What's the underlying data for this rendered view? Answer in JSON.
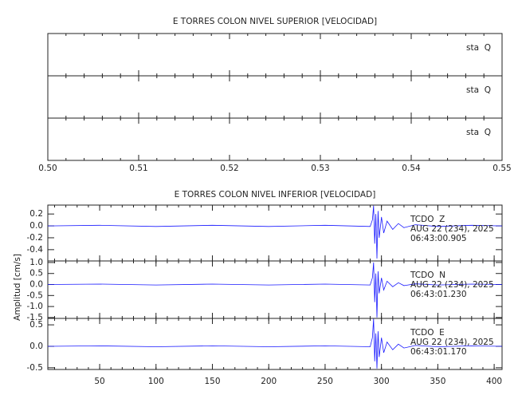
{
  "chart_data": [
    {
      "type": "line",
      "title": "E TORRES COLON NIVEL SUPERIOR [VELOCIDAD]",
      "xlim": [
        0.5,
        0.55
      ],
      "xticks": [
        {
          "value": 0.5,
          "label": "0.50"
        },
        0.51,
        0.52,
        0.53,
        0.54,
        {
          "value": 0.55,
          "label": "0.55"
        }
      ],
      "panels": [
        {
          "label": "sta  Q"
        },
        {
          "label": "sta  Q"
        },
        {
          "label": "sta  Q"
        }
      ]
    },
    {
      "type": "line",
      "title": "E TORRES COLON NIVEL INFERIOR [VELOCIDAD]",
      "ylabel": "Amplitud [cm/s]",
      "xlim": [
        4,
        407
      ],
      "xticks": [
        50,
        100,
        150,
        200,
        250,
        300,
        350,
        400
      ],
      "panels": [
        {
          "annotation": [
            "TCDO  Z",
            "AUG 22 (234), 2025",
            "06:43:00.905"
          ],
          "color": "#1a1aff",
          "ylim": [
            -0.59,
            0.35
          ],
          "yticks": [
            0.2,
            {
              "value": 0,
              "label": "0.0"
            },
            -0.2,
            -0.4
          ],
          "x": [
            4,
            50,
            100,
            150,
            200,
            250,
            290,
            292,
            293,
            294,
            295,
            296,
            297,
            298,
            300,
            302,
            305,
            310,
            315,
            320,
            330,
            350,
            380,
            407
          ],
          "values": [
            0,
            0.01,
            -0.01,
            0.01,
            -0.01,
            0.01,
            -0.01,
            0.1,
            0.34,
            -0.3,
            0.2,
            -0.55,
            0.25,
            -0.2,
            0.15,
            -0.12,
            0.08,
            -0.06,
            0.04,
            -0.03,
            0.02,
            -0.01,
            0.01,
            0
          ]
        },
        {
          "annotation": [
            "TCDO  N",
            "AUG 22 (234), 2025",
            "06:43:01.230"
          ],
          "color": "#1a1aff",
          "ylim": [
            -1.54,
            1.07
          ],
          "yticks": [
            {
              "value": 1,
              "label": "1.0"
            },
            0.5,
            {
              "value": 0,
              "label": "0.0"
            },
            -0.5,
            {
              "value": -1,
              "label": "-1.0"
            },
            -1.5
          ],
          "x": [
            4,
            50,
            100,
            150,
            200,
            250,
            290,
            292,
            293,
            294,
            295,
            296,
            297,
            298,
            300,
            302,
            305,
            310,
            315,
            320,
            330,
            350,
            380,
            407
          ],
          "values": [
            0,
            0.02,
            -0.02,
            0.02,
            -0.02,
            0.02,
            -0.02,
            0.3,
            1.0,
            -0.8,
            0.5,
            -1.5,
            0.6,
            -0.4,
            0.3,
            -0.25,
            0.15,
            -0.1,
            0.08,
            -0.05,
            0.03,
            -0.02,
            0.02,
            0
          ]
        },
        {
          "annotation": [
            "TCDO  E",
            "AUG 22 (234), 2025",
            "06:43:01.170"
          ],
          "color": "#1a1aff",
          "ylim": [
            -0.54,
            0.65
          ],
          "yticks": [
            0.5,
            {
              "value": 0,
              "label": "0.0"
            },
            -0.5
          ],
          "x": [
            4,
            50,
            100,
            150,
            200,
            250,
            290,
            292,
            293,
            294,
            295,
            296,
            297,
            298,
            300,
            302,
            305,
            310,
            315,
            320,
            330,
            350,
            380,
            407
          ],
          "values": [
            0,
            0.01,
            -0.01,
            0.01,
            -0.01,
            0.01,
            -0.01,
            0.2,
            0.64,
            -0.35,
            0.3,
            -0.52,
            0.35,
            -0.25,
            0.2,
            -0.15,
            0.1,
            -0.08,
            0.05,
            -0.04,
            0.02,
            -0.01,
            0.01,
            0
          ]
        }
      ]
    }
  ]
}
